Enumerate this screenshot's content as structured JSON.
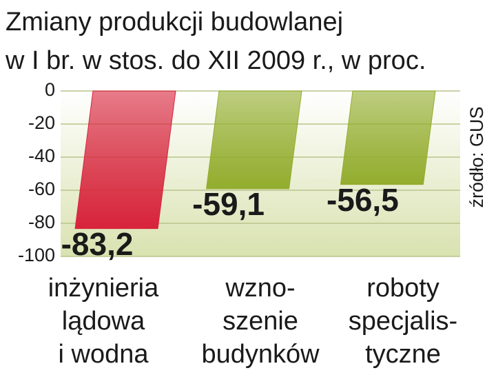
{
  "chart_data": {
    "type": "bar",
    "title": [
      "Zmiany produkcji budowlanej",
      "w I br. w stos. do XII 2009 r., w proc."
    ],
    "categories": [
      [
        "inżynieria",
        "lądowa",
        "i wodna"
      ],
      [
        "wzno-",
        "szenie",
        "budynków"
      ],
      [
        "roboty",
        "specjalis-",
        "tyczne"
      ]
    ],
    "values": [
      -83.2,
      -59.1,
      -56.5
    ],
    "value_labels": [
      "-83,2",
      "-59,1",
      "-56,5"
    ],
    "colors": [
      "#d8233c",
      "#93ad2e",
      "#93ad2e"
    ],
    "ylim": [
      -100,
      0
    ],
    "yticks": [
      0,
      -20,
      -40,
      -60,
      -80,
      -100
    ],
    "grid": true,
    "source": "źródło: GUS"
  }
}
